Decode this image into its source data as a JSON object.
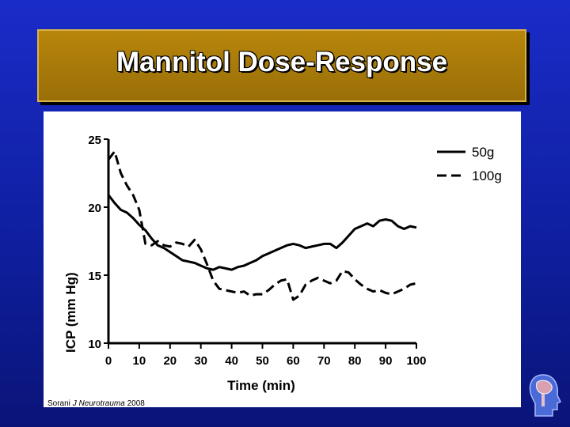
{
  "slide": {
    "title": "Mannitol Dose-Response",
    "citation": {
      "author": "Sorani",
      "journal": "J Neurotrauma",
      "year": "2008"
    },
    "logo_icon": "brain-profile-icon"
  },
  "colors": {
    "background": "#1a2cc8",
    "title_box": "#b8860b",
    "chart_background": "#ffffff",
    "series_line": "#000000"
  },
  "chart_data": {
    "type": "line",
    "xlabel": "Time (min)",
    "ylabel": "ICP (mm Hg)",
    "xlim": [
      0,
      100
    ],
    "ylim": [
      10,
      25
    ],
    "xticks": [
      0,
      10,
      20,
      30,
      40,
      50,
      60,
      70,
      80,
      90,
      100
    ],
    "yticks": [
      10,
      15,
      20,
      25
    ],
    "grid": false,
    "legend_position": "top-right",
    "series": [
      {
        "name": "50g",
        "style": "solid",
        "x": [
          0,
          2,
          4,
          6,
          8,
          10,
          12,
          14,
          16,
          18,
          20,
          22,
          24,
          26,
          28,
          30,
          32,
          34,
          36,
          38,
          40,
          42,
          44,
          46,
          48,
          50,
          52,
          54,
          56,
          58,
          60,
          62,
          64,
          66,
          68,
          70,
          72,
          74,
          76,
          78,
          80,
          82,
          84,
          86,
          88,
          90,
          92,
          94,
          96,
          98,
          100
        ],
        "values": [
          20.9,
          20.3,
          19.8,
          19.6,
          19.2,
          18.7,
          18.3,
          17.7,
          17.2,
          17.0,
          16.7,
          16.4,
          16.1,
          16.0,
          15.9,
          15.7,
          15.5,
          15.4,
          15.6,
          15.5,
          15.4,
          15.6,
          15.7,
          15.9,
          16.1,
          16.4,
          16.6,
          16.8,
          17.0,
          17.2,
          17.3,
          17.2,
          17.0,
          17.1,
          17.2,
          17.3,
          17.3,
          17.0,
          17.4,
          17.9,
          18.4,
          18.6,
          18.8,
          18.6,
          19.0,
          19.1,
          19.0,
          18.6,
          18.4,
          18.6,
          18.5
        ]
      },
      {
        "name": "100g",
        "style": "dashed",
        "x": [
          0,
          2,
          4,
          6,
          8,
          10,
          12,
          14,
          16,
          18,
          20,
          22,
          24,
          26,
          28,
          30,
          32,
          34,
          36,
          38,
          40,
          42,
          44,
          46,
          48,
          50,
          52,
          54,
          56,
          58,
          60,
          62,
          64,
          66,
          68,
          70,
          72,
          74,
          76,
          78,
          80,
          82,
          84,
          86,
          88,
          90,
          92,
          94,
          96,
          98,
          100
        ],
        "values": [
          23.5,
          24.1,
          22.5,
          21.6,
          20.9,
          19.8,
          17.3,
          17.2,
          17.5,
          17.2,
          17.1,
          17.4,
          17.3,
          17.1,
          17.6,
          16.9,
          15.8,
          14.6,
          14.0,
          13.9,
          13.8,
          13.7,
          13.8,
          13.5,
          13.6,
          13.6,
          13.9,
          14.3,
          14.6,
          14.7,
          13.2,
          13.5,
          14.3,
          14.6,
          14.8,
          14.6,
          14.4,
          14.6,
          15.3,
          15.2,
          14.7,
          14.3,
          14.0,
          13.8,
          13.9,
          13.7,
          13.6,
          13.8,
          14.0,
          14.3,
          14.4
        ]
      }
    ]
  }
}
